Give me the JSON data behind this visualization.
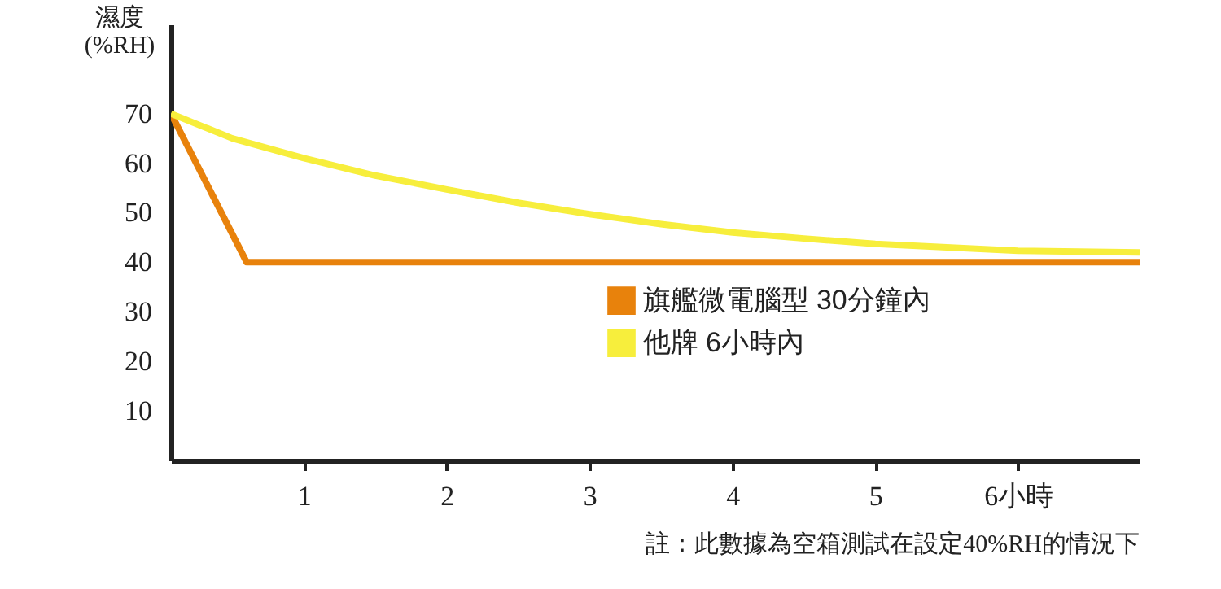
{
  "chart_data": {
    "type": "line",
    "ylabel": "濕度\n(%RH)",
    "xlim": [
      0.07,
      6.85
    ],
    "xticks": [
      1,
      2,
      3,
      4,
      5,
      {
        "value": 6,
        "label": "6小時"
      }
    ],
    "ylim": [
      0,
      88
    ],
    "yticks": [
      10,
      20,
      30,
      40,
      50,
      60,
      70
    ],
    "grid": false,
    "legend": "right",
    "marker": "none",
    "line_style": "solid",
    "annotations": [
      "註：此數據為空箱測試在設定40%RH的情況下"
    ],
    "series": [
      {
        "name": "旗艦微電腦型 30分鐘內",
        "color": "#e8820c",
        "x": [
          0.07,
          0.6,
          6.85
        ],
        "values": [
          70,
          40,
          40
        ]
      },
      {
        "name": "他牌 6小時內",
        "color": "#f7ee3c",
        "x": [
          0.07,
          0.5,
          1,
          1.5,
          2,
          2.5,
          3,
          3.5,
          4,
          4.5,
          5,
          5.5,
          6,
          6.85
        ],
        "values": [
          70,
          65,
          61,
          57.5,
          54.7,
          52,
          49.7,
          47.7,
          46,
          44.8,
          43.7,
          43,
          42.3,
          42
        ]
      }
    ]
  }
}
